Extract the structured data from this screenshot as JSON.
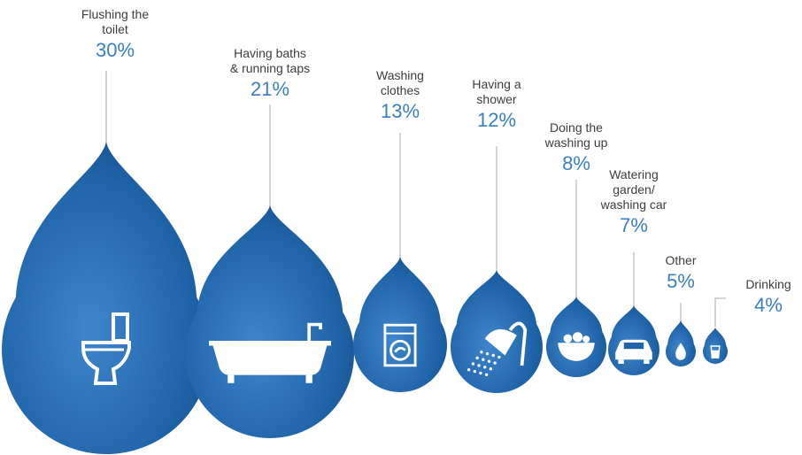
{
  "chart_data": {
    "type": "bar",
    "categories": [
      "Flushing the\ntoilet",
      "Having baths\n& running taps",
      "Washing\nclothes",
      "Having a\nshower",
      "Doing the\nwashing up",
      "Watering\ngarden/\nwashing car",
      "Other",
      "Drinking"
    ],
    "values": [
      30,
      21,
      13,
      12,
      8,
      7,
      5,
      4
    ],
    "value_labels": [
      "30%",
      "21%",
      "13%",
      "12%",
      "8%",
      "7%",
      "5%",
      "4%"
    ],
    "icons": [
      "toilet-icon",
      "bathtub-icon",
      "washing-machine-icon",
      "shower-head-icon",
      "dish-basin-icon",
      "car-icon",
      "water-drop-icon",
      "glass-icon"
    ],
    "colors": {
      "drop": "#1f63a8",
      "drop_highlight": "#4a8fd4",
      "percent_text": "#3a7fc3",
      "label_text": "#3d3d3d",
      "line": "#c7c7c7"
    }
  }
}
